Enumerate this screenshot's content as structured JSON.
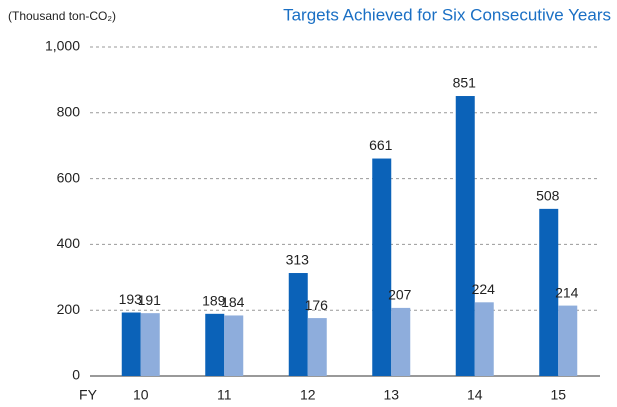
{
  "chart_data": {
    "type": "bar",
    "title": "Targets Achieved for Six Consecutive Years",
    "y_axis_label": "(Thousand ton-CO₂)",
    "x_axis_label": "FY",
    "categories": [
      "10",
      "11",
      "12",
      "13",
      "14",
      "15"
    ],
    "series": [
      {
        "color": "#0b62b8",
        "values": [
          193,
          189,
          313,
          661,
          851,
          508
        ]
      },
      {
        "color": "#8eaddc",
        "values": [
          191,
          184,
          176,
          207,
          224,
          214
        ]
      }
    ],
    "ylim": [
      0,
      1000
    ],
    "yticks": [
      0,
      200,
      400,
      600,
      800,
      {
        "value": 1000,
        "label": "1,000"
      }
    ],
    "grid": true
  }
}
